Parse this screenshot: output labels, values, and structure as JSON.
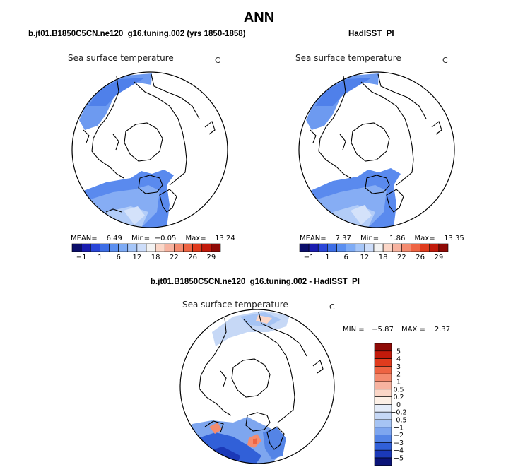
{
  "header": {
    "title": "ANN"
  },
  "panels": [
    {
      "title": "b.jt01.B1850C5CN.ne120_g16.tuning.002 (yrs 1850-1858)",
      "variable": "Sea surface temperature",
      "units": "C",
      "mean_label": "MEAN=",
      "mean": "6.49",
      "min_label": "Min=",
      "min": "−0.05",
      "max_label": "Max=",
      "max": "13.24"
    },
    {
      "title": "HadISST_PI",
      "variable": "Sea surface temperature",
      "units": "C",
      "mean_label": "MEAN=",
      "mean": "7.37",
      "min_label": "Min=",
      "min": "1.86",
      "max_label": "Max=",
      "max": "13.35"
    }
  ],
  "colorbar_h": {
    "ticks": [
      "−1",
      "1",
      "6",
      "12",
      "18",
      "22",
      "26",
      "29"
    ],
    "colors": [
      "#0b0e6a",
      "#1a1db0",
      "#2a46d8",
      "#3d6ee6",
      "#5b8ff0",
      "#7eabf5",
      "#a6c6f8",
      "#cdddf9",
      "#f2f2f2",
      "#fbd6c7",
      "#f7b3a0",
      "#f48b6f",
      "#ee6443",
      "#e03b1d",
      "#c21a0b",
      "#8f0a06"
    ]
  },
  "difference": {
    "title": "b.jt01.B1850C5CN.ne120_g16.tuning.002 - HadISST_PI",
    "variable": "Sea surface temperature",
    "units": "C",
    "min_label": "MIN =",
    "min": "−5.87",
    "max_label": "MAX =",
    "max": "2.37"
  },
  "colorbar_v": {
    "labels": [
      "5",
      "4",
      "3",
      "2",
      "1",
      "0.5",
      "0.2",
      "0",
      "−0.2",
      "−0.5",
      "−1",
      "−2",
      "−3",
      "−4",
      "−5"
    ],
    "colors": [
      "#8f0a06",
      "#c21a0b",
      "#e03b1d",
      "#ee6443",
      "#f48b6f",
      "#f7b3a0",
      "#fbd6c7",
      "#fdf0e6",
      "#e4ecf9",
      "#c6d8f6",
      "#a6c4f4",
      "#7ea6ef",
      "#5484e6",
      "#3160d8",
      "#1b39b8",
      "#0b1478"
    ]
  }
}
